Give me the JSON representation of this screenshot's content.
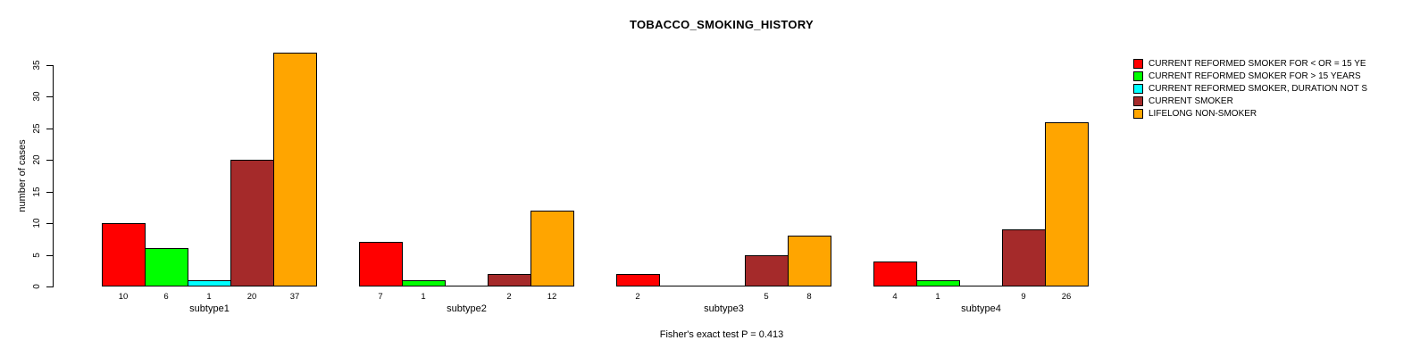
{
  "chart_data": {
    "type": "bar",
    "title": "TOBACCO_SMOKING_HISTORY",
    "ylabel": "number of cases",
    "xlabel": "",
    "ylim": [
      0,
      35
    ],
    "yticks": [
      0,
      5,
      10,
      15,
      20,
      25,
      30,
      35
    ],
    "grid": false,
    "legend_position": "right-outside",
    "categories": [
      "subtype1",
      "subtype2",
      "subtype3",
      "subtype4"
    ],
    "series": [
      {
        "name": "CURRENT REFORMED SMOKER FOR < OR = 15 YE",
        "color": "#FF0000",
        "values": [
          10,
          7,
          2,
          4
        ]
      },
      {
        "name": "CURRENT REFORMED SMOKER FOR > 15 YEARS",
        "color": "#00FF00",
        "values": [
          6,
          1,
          0,
          1
        ]
      },
      {
        "name": "CURRENT REFORMED SMOKER, DURATION NOT S",
        "color": "#00FFFF",
        "values": [
          1,
          0,
          0,
          0
        ]
      },
      {
        "name": "CURRENT SMOKER",
        "color": "#A52A2A",
        "values": [
          20,
          2,
          5,
          9
        ]
      },
      {
        "name": "LIFELONG NON-SMOKER",
        "color": "#FFA500",
        "values": [
          37,
          12,
          8,
          26
        ]
      }
    ],
    "bar_value_labels_shown_only_if_positive": true,
    "annotation": "Fisher's exact test P = 0.413"
  }
}
